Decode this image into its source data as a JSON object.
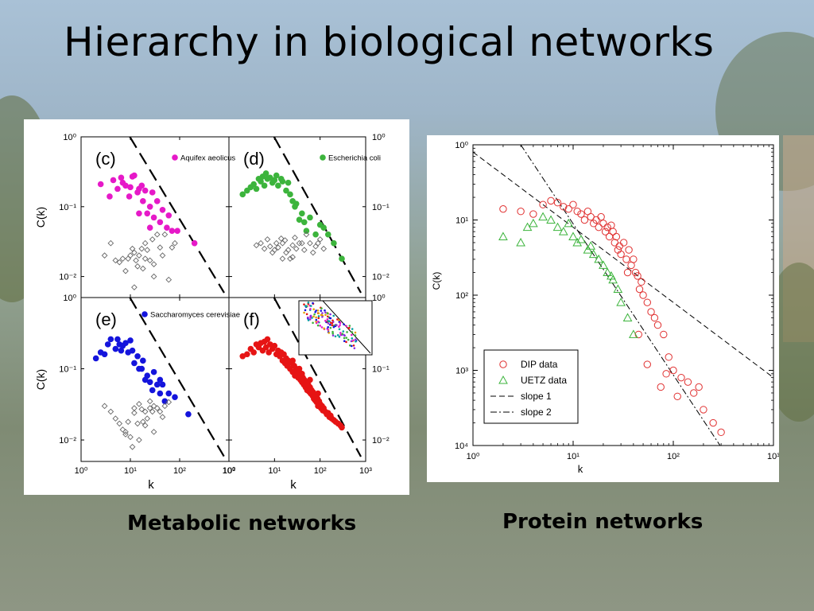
{
  "slide": {
    "title": "Hierarchy in biological networks",
    "caption_left": "Metabolic networks",
    "caption_right": "Protein networks"
  },
  "colors": {
    "magenta": "#e619c8",
    "green": "#3cb43c",
    "blue": "#1414dc",
    "red": "#e61414",
    "protein_red": "#e03030",
    "protein_green": "#3cb43c"
  },
  "chart_data": [
    {
      "panel": "(c)",
      "type": "scatter",
      "log_x": true,
      "log_y": true,
      "xlim": [
        1,
        1000
      ],
      "ylim": [
        0.005,
        1
      ],
      "x_ticks": [
        "10⁰",
        "10¹",
        "10²",
        "10³"
      ],
      "y_ticks": [
        "10⁰",
        "10⁻¹",
        "10⁻²"
      ],
      "ylabel": "C(k)",
      "legend": "Aquifex aeolicus",
      "series": [
        {
          "name": "Aquifex aeolicus",
          "marker": "filled-circle",
          "color": "magenta",
          "x": [
            2.5,
            3.8,
            4.5,
            5.5,
            6.5,
            7,
            8,
            9.5,
            10,
            11,
            12,
            14,
            15,
            17,
            18,
            20,
            22,
            25,
            28,
            30,
            35,
            40,
            45,
            55,
            60,
            70,
            90,
            200,
            15,
            25
          ],
          "y": [
            0.21,
            0.14,
            0.24,
            0.18,
            0.26,
            0.22,
            0.2,
            0.14,
            0.19,
            0.27,
            0.28,
            0.16,
            0.18,
            0.2,
            0.12,
            0.17,
            0.08,
            0.1,
            0.16,
            0.07,
            0.12,
            0.06,
            0.09,
            0.05,
            0.075,
            0.045,
            0.045,
            0.03,
            0.08,
            0.05
          ]
        },
        {
          "name": "",
          "marker": "open-diamond",
          "color": "#666666",
          "x": [
            3,
            4,
            5,
            6,
            7,
            8,
            9,
            10,
            11,
            12,
            13,
            14,
            15,
            17,
            18,
            20,
            22,
            25,
            28,
            30,
            35,
            40,
            45,
            50,
            60,
            70,
            80,
            12,
            20,
            30
          ],
          "y": [
            0.02,
            0.03,
            0.017,
            0.016,
            0.018,
            0.012,
            0.018,
            0.02,
            0.025,
            0.007,
            0.017,
            0.014,
            0.02,
            0.025,
            0.013,
            0.03,
            0.024,
            0.017,
            0.034,
            0.01,
            0.04,
            0.026,
            0.02,
            0.04,
            0.009,
            0.026,
            0.03,
            0.022,
            0.018,
            0.015
          ]
        }
      ],
      "reference_line": "dashed"
    },
    {
      "panel": "(d)",
      "type": "scatter",
      "log_x": true,
      "log_y": true,
      "xlim": [
        1,
        1000
      ],
      "ylim": [
        0.005,
        1
      ],
      "y_ticks": [
        "10⁰",
        "10⁻¹",
        "10⁻²"
      ],
      "legend": "Escherichia coli",
      "series": [
        {
          "name": "Escherichia coli",
          "marker": "filled-circle",
          "color": "green",
          "x": [
            2,
            2.5,
            3,
            3.5,
            4,
            4.5,
            5,
            5.5,
            6,
            6.5,
            7,
            8,
            9,
            10,
            11,
            12,
            14,
            15,
            18,
            20,
            22,
            25,
            28,
            30,
            35,
            40,
            45,
            50,
            60,
            80,
            100,
            120,
            150,
            200,
            300
          ],
          "y": [
            0.15,
            0.17,
            0.19,
            0.21,
            0.18,
            0.25,
            0.23,
            0.27,
            0.2,
            0.3,
            0.25,
            0.26,
            0.22,
            0.24,
            0.28,
            0.2,
            0.25,
            0.23,
            0.17,
            0.22,
            0.15,
            0.12,
            0.1,
            0.11,
            0.065,
            0.08,
            0.06,
            0.045,
            0.07,
            0.04,
            0.055,
            0.05,
            0.04,
            0.03,
            0.018
          ]
        },
        {
          "name": "",
          "marker": "open-diamond",
          "color": "#666666",
          "x": [
            4,
            5,
            6,
            7,
            8,
            9,
            10,
            11,
            12,
            14,
            15,
            17,
            18,
            20,
            22,
            25,
            28,
            30,
            35,
            40,
            45,
            50,
            60,
            70,
            80,
            90,
            100,
            120,
            15,
            25
          ],
          "y": [
            0.028,
            0.03,
            0.025,
            0.034,
            0.027,
            0.022,
            0.024,
            0.03,
            0.026,
            0.035,
            0.018,
            0.033,
            0.022,
            0.024,
            0.018,
            0.028,
            0.036,
            0.025,
            0.03,
            0.03,
            0.024,
            0.04,
            0.03,
            0.022,
            0.027,
            0.03,
            0.034,
            0.025,
            0.03,
            0.019
          ]
        }
      ],
      "reference_line": "dashed"
    },
    {
      "panel": "(e)",
      "type": "scatter",
      "log_x": true,
      "log_y": true,
      "xlim": [
        1,
        1000
      ],
      "ylim": [
        0.005,
        1
      ],
      "x_ticks": [
        "10⁰",
        "10¹",
        "10²",
        "10³"
      ],
      "y_ticks": [
        "10⁰",
        "10⁻¹",
        "10⁻²"
      ],
      "xlabel": "k",
      "ylabel": "C(k)",
      "legend": "Saccharomyces cerevisiae",
      "series": [
        {
          "name": "Saccharomyces cerevisiae",
          "marker": "filled-circle",
          "color": "blue",
          "x": [
            2,
            2.5,
            3,
            3.5,
            4,
            5,
            5.5,
            6,
            6.5,
            7,
            8,
            9,
            10,
            11,
            12,
            14,
            15,
            17,
            18,
            20,
            22,
            25,
            28,
            30,
            35,
            40,
            45,
            50,
            60,
            80,
            150,
            40
          ],
          "y": [
            0.14,
            0.17,
            0.16,
            0.22,
            0.26,
            0.19,
            0.26,
            0.22,
            0.18,
            0.21,
            0.23,
            0.17,
            0.25,
            0.18,
            0.12,
            0.15,
            0.1,
            0.1,
            0.13,
            0.07,
            0.08,
            0.065,
            0.05,
            0.09,
            0.06,
            0.045,
            0.06,
            0.035,
            0.045,
            0.04,
            0.023,
            0.07
          ]
        },
        {
          "name": "",
          "marker": "open-diamond",
          "color": "#666666",
          "x": [
            3,
            4,
            5,
            6,
            7,
            8,
            9,
            10,
            11,
            12,
            14,
            15,
            17,
            18,
            20,
            22,
            25,
            28,
            30,
            35,
            40,
            45,
            50,
            60,
            12,
            20,
            30,
            25,
            8,
            15
          ],
          "y": [
            0.03,
            0.025,
            0.02,
            0.017,
            0.014,
            0.013,
            0.018,
            0.011,
            0.008,
            0.024,
            0.017,
            0.032,
            0.027,
            0.018,
            0.025,
            0.02,
            0.028,
            0.025,
            0.03,
            0.028,
            0.025,
            0.021,
            0.03,
            0.034,
            0.028,
            0.016,
            0.013,
            0.035,
            0.012,
            0.01
          ]
        }
      ],
      "reference_line": "dashed"
    },
    {
      "panel": "(f)",
      "type": "scatter",
      "log_x": true,
      "log_y": true,
      "xlim": [
        1,
        1000
      ],
      "ylim": [
        0.005,
        1
      ],
      "x_ticks": [
        "10⁰",
        "10¹",
        "10²",
        "10³"
      ],
      "y_ticks": [
        "10⁰",
        "10⁻¹",
        "10⁻²"
      ],
      "xlabel": "k",
      "series": [
        {
          "name": "",
          "marker": "filled-circle",
          "color": "red",
          "x": [
            2,
            2.5,
            3,
            3.5,
            4,
            4.5,
            5,
            5.5,
            6,
            6.5,
            7,
            7.5,
            8,
            9,
            10,
            11,
            12,
            13,
            14,
            15,
            16,
            17,
            18,
            19,
            20,
            22,
            24,
            25,
            27,
            28,
            30,
            32,
            33,
            35,
            37,
            38,
            40,
            42,
            44,
            45,
            48,
            50,
            52,
            55,
            57,
            60,
            62,
            65,
            68,
            70,
            73,
            75,
            78,
            80,
            84,
            88,
            90,
            95,
            100,
            105,
            110,
            115,
            120,
            130,
            140,
            150,
            160,
            170,
            180,
            200,
            220,
            250,
            280,
            300,
            40,
            60,
            90,
            25,
            35,
            55
          ],
          "y": [
            0.15,
            0.16,
            0.19,
            0.17,
            0.22,
            0.2,
            0.23,
            0.18,
            0.24,
            0.2,
            0.26,
            0.17,
            0.22,
            0.19,
            0.21,
            0.16,
            0.18,
            0.15,
            0.17,
            0.13,
            0.16,
            0.12,
            0.14,
            0.11,
            0.13,
            0.1,
            0.12,
            0.09,
            0.11,
            0.08,
            0.1,
            0.085,
            0.075,
            0.09,
            0.07,
            0.08,
            0.065,
            0.075,
            0.06,
            0.07,
            0.055,
            0.065,
            0.05,
            0.06,
            0.048,
            0.055,
            0.045,
            0.05,
            0.042,
            0.047,
            0.038,
            0.044,
            0.036,
            0.04,
            0.034,
            0.038,
            0.03,
            0.035,
            0.032,
            0.028,
            0.03,
            0.026,
            0.028,
            0.025,
            0.023,
            0.024,
            0.021,
            0.022,
            0.02,
            0.019,
            0.018,
            0.017,
            0.016,
            0.015,
            0.085,
            0.07,
            0.045,
            0.13,
            0.1,
            0.058
          ]
        }
      ],
      "reference_line": "dashed",
      "inset": "multicolor scatter"
    },
    {
      "panel": "Protein networks",
      "type": "scatter",
      "log_x": true,
      "log_y": true,
      "xlim": [
        1,
        1000
      ],
      "ylim": [
        0.0001,
        1
      ],
      "x_ticks": [
        "10⁰",
        "10¹",
        "10²",
        "10³"
      ],
      "y_ticks": [
        "10⁰",
        "10¹",
        "10²",
        "10³",
        "10⁴"
      ],
      "xlabel": "k",
      "ylabel": "C(k)",
      "legend_position": "bottom-left",
      "series": [
        {
          "name": "DIP data",
          "marker": "open-circle",
          "color": "protein_red",
          "x": [
            2,
            3,
            4,
            5,
            6,
            7,
            8,
            9,
            10,
            11,
            12,
            13,
            14,
            15,
            16,
            17,
            18,
            19,
            20,
            21,
            22,
            23,
            24,
            25,
            26,
            27,
            28,
            29,
            30,
            32,
            34,
            36,
            38,
            40,
            42,
            44,
            46,
            48,
            50,
            55,
            60,
            65,
            70,
            80,
            90,
            100,
            120,
            140,
            160,
            180,
            200,
            250,
            300,
            45,
            55,
            75,
            85,
            110,
            35
          ],
          "y": [
            0.14,
            0.13,
            0.12,
            0.16,
            0.18,
            0.17,
            0.15,
            0.14,
            0.16,
            0.13,
            0.12,
            0.1,
            0.13,
            0.11,
            0.09,
            0.1,
            0.08,
            0.11,
            0.09,
            0.07,
            0.08,
            0.06,
            0.085,
            0.07,
            0.05,
            0.06,
            0.04,
            0.045,
            0.035,
            0.05,
            0.03,
            0.04,
            0.025,
            0.03,
            0.02,
            0.018,
            0.012,
            0.015,
            0.01,
            0.008,
            0.006,
            0.005,
            0.004,
            0.003,
            0.0015,
            0.001,
            0.0008,
            0.0007,
            0.0005,
            0.0006,
            0.0003,
            0.0002,
            0.00015,
            0.003,
            0.0012,
            0.0006,
            0.0009,
            0.00045,
            0.02
          ]
        },
        {
          "name": "UETZ data",
          "marker": "open-triangle",
          "color": "protein_green",
          "x": [
            2,
            3,
            3.5,
            4,
            5,
            6,
            7,
            8,
            9,
            10,
            11,
            12,
            14,
            15,
            16,
            18,
            20,
            22,
            24,
            25,
            28,
            30,
            35,
            40
          ],
          "y": [
            0.06,
            0.05,
            0.08,
            0.09,
            0.11,
            0.1,
            0.08,
            0.07,
            0.09,
            0.06,
            0.05,
            0.055,
            0.04,
            0.045,
            0.035,
            0.03,
            0.025,
            0.02,
            0.018,
            0.016,
            0.012,
            0.008,
            0.005,
            0.003
          ]
        }
      ],
      "lines": [
        {
          "name": "slope 1",
          "style": "dashed"
        },
        {
          "name": "slope 2",
          "style": "dash-dot"
        }
      ]
    }
  ]
}
